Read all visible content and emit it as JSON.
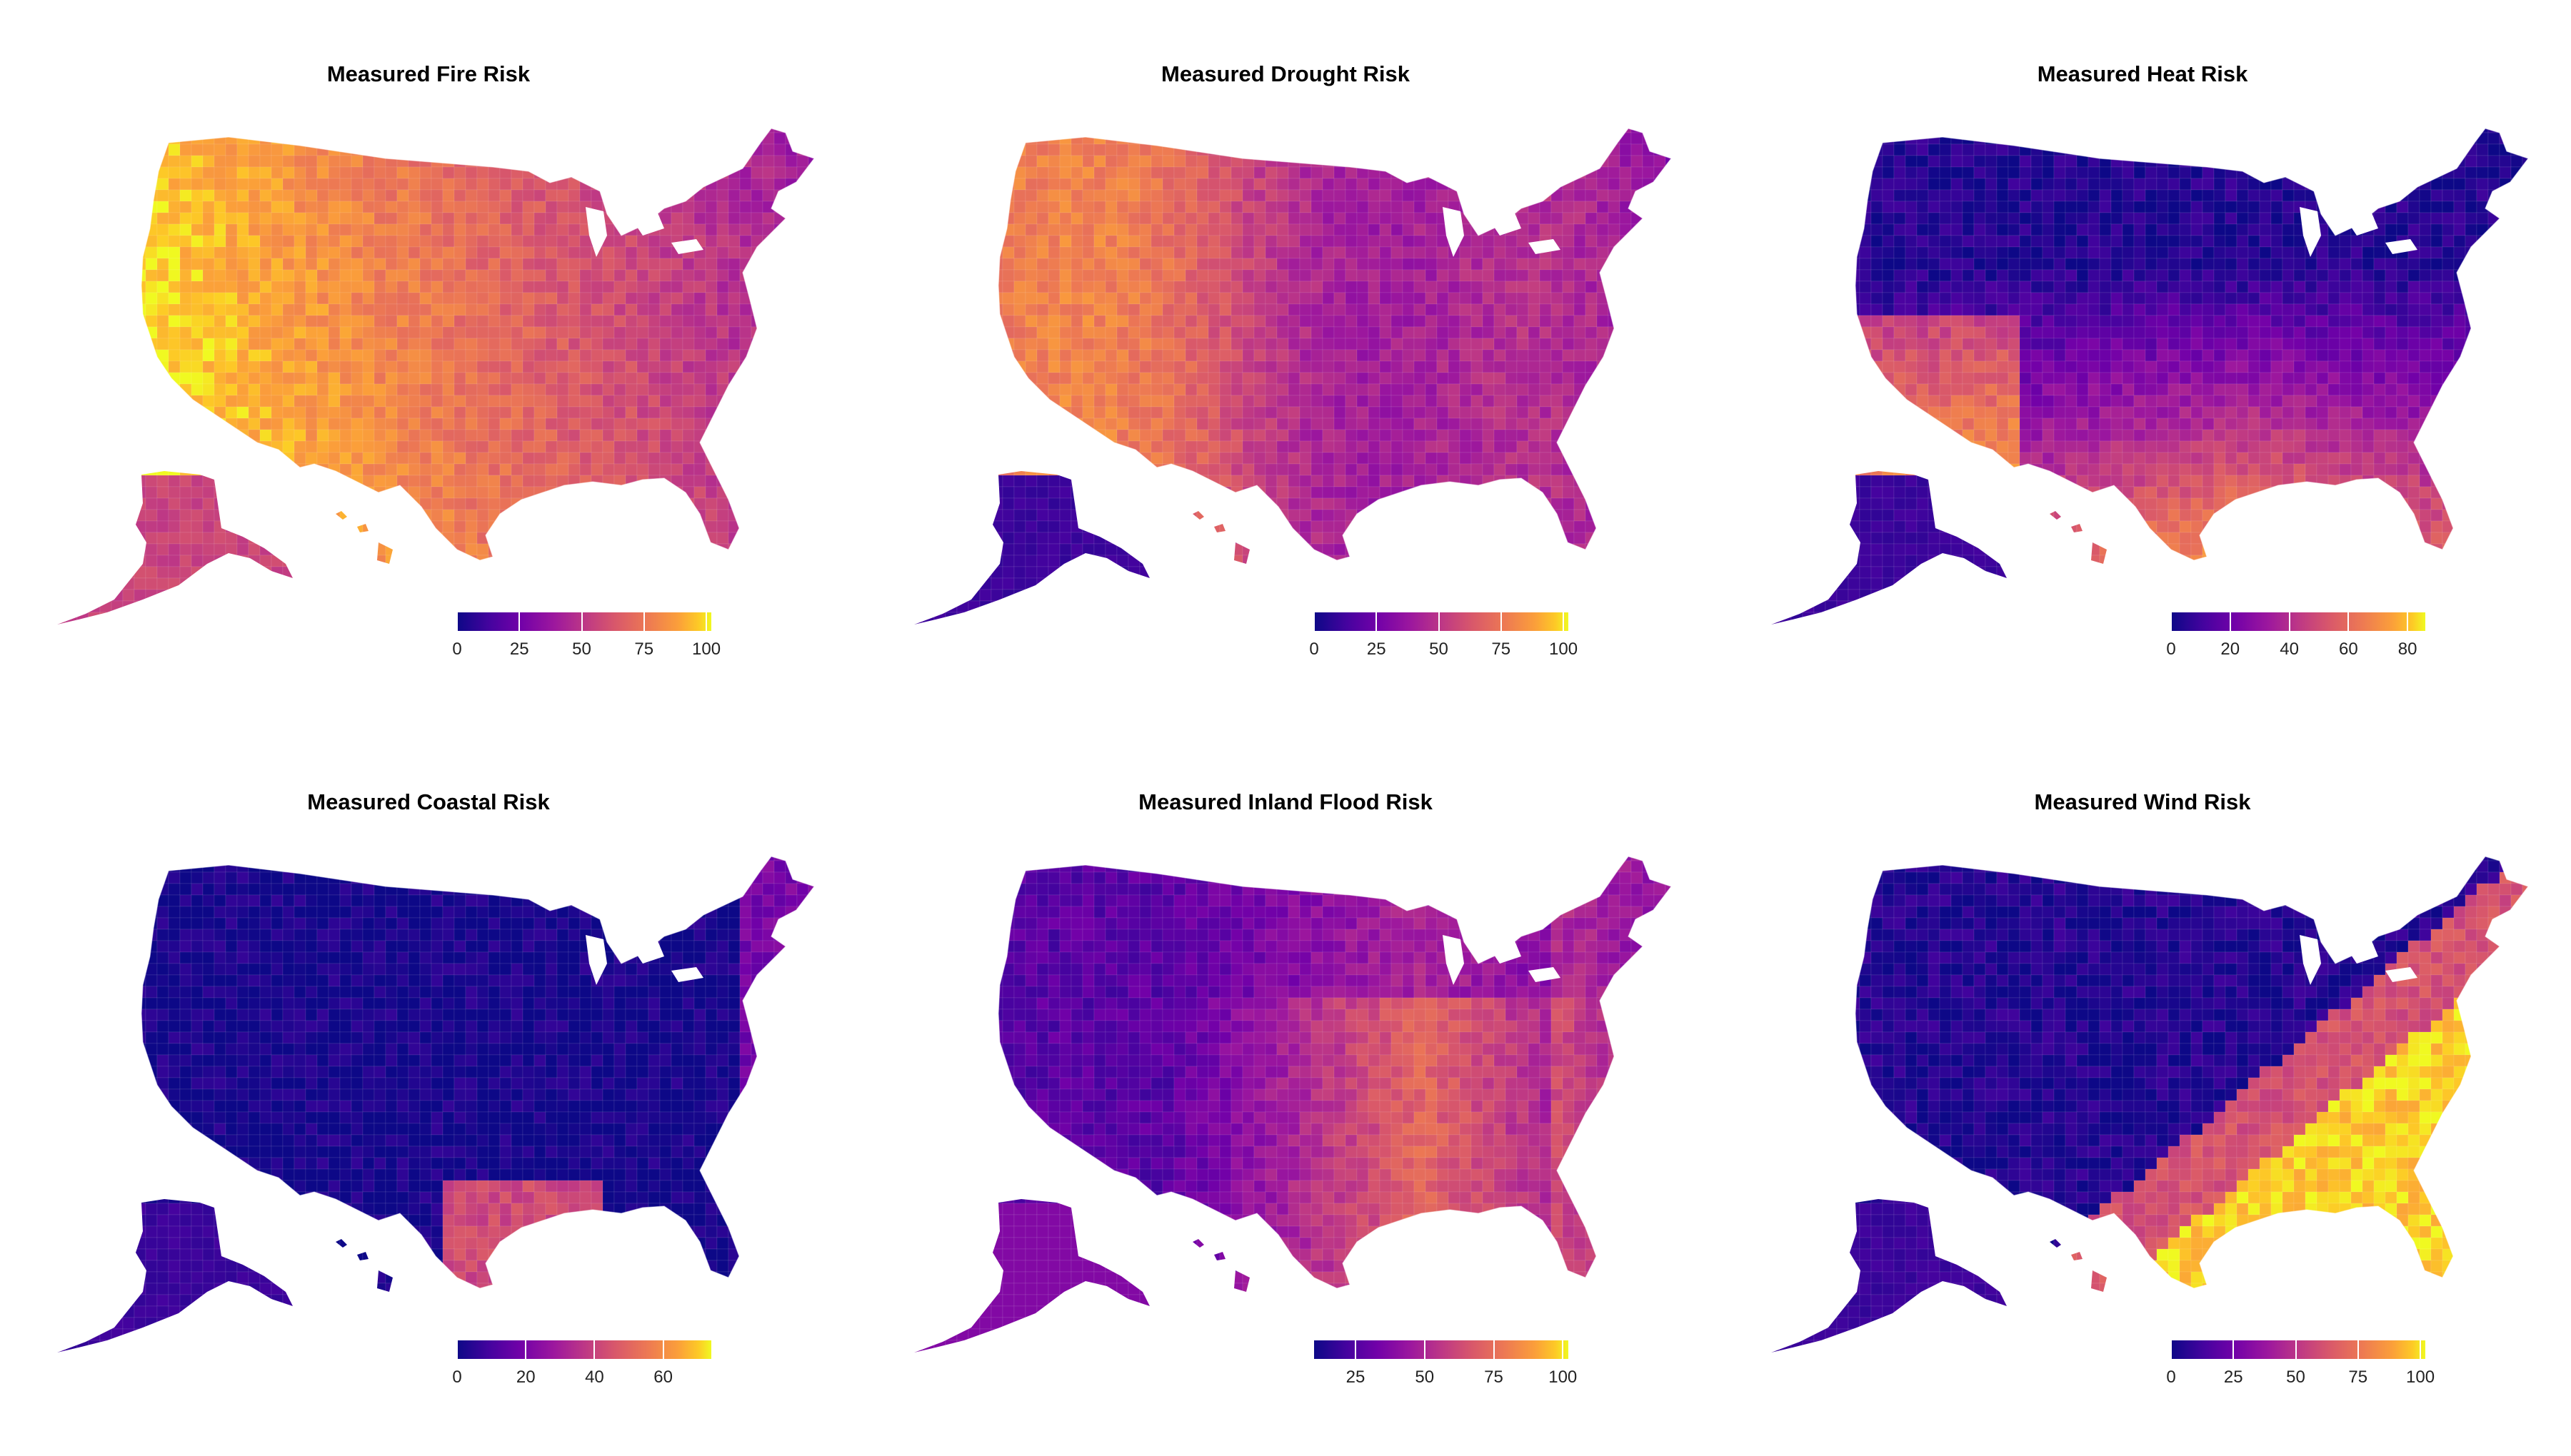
{
  "panels": [
    {
      "title": "Measured Fire Risk",
      "legend": {
        "min": 0,
        "max": 102,
        "ticks": [
          0,
          25,
          50,
          75,
          100
        ]
      },
      "pattern": "fire"
    },
    {
      "title": "Measured Drought Risk",
      "legend": {
        "min": 0,
        "max": 102,
        "ticks": [
          0,
          25,
          50,
          75,
          100
        ]
      },
      "pattern": "drought"
    },
    {
      "title": "Measured Heat Risk",
      "legend": {
        "min": 0,
        "max": 86,
        "ticks": [
          0,
          20,
          40,
          60,
          80
        ]
      },
      "pattern": "heat"
    },
    {
      "title": "Measured Coastal Risk",
      "legend": {
        "min": 0,
        "max": 74,
        "ticks": [
          0,
          20,
          40,
          60
        ]
      },
      "pattern": "coastal"
    },
    {
      "title": "Measured Inland Flood Risk",
      "legend": {
        "min": 10,
        "max": 102,
        "ticks": [
          25,
          50,
          75,
          100
        ]
      },
      "pattern": "flood"
    },
    {
      "title": "Measured Wind Risk",
      "legend": {
        "min": 0,
        "max": 102,
        "ticks": [
          0,
          25,
          50,
          75,
          100
        ]
      },
      "pattern": "wind"
    }
  ],
  "colormap": "plasma",
  "colors": {
    "low": "#0d0887",
    "mid": "#bd3786",
    "high": "#f0f921",
    "border": "#ffffff"
  }
}
